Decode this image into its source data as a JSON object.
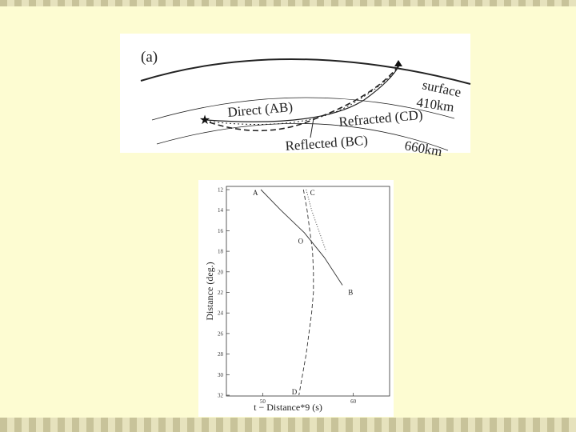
{
  "figure_a": {
    "panel_label": "(a)",
    "surface": "surface",
    "layer_410": "410km",
    "layer_660": "660km",
    "direct": "Direct (AB)",
    "refracted": "Refracted (CD)",
    "reflected": "Reflected (BC)"
  },
  "figure_b": {
    "x_label": "t − Distance*9 (s)",
    "y_label": "Distance (deg.)",
    "xlim": [
      46,
      64
    ],
    "xticks": [
      50,
      60
    ],
    "ylim": [
      12,
      32
    ],
    "yticks": [
      12,
      14,
      16,
      18,
      20,
      22,
      24,
      26,
      28,
      30,
      32
    ],
    "series": [
      {
        "style": "solid",
        "x": [
          49.8,
          52,
          54.6,
          56.8,
          58.8
        ],
        "y": [
          12,
          14,
          16.2,
          18.6,
          21.3
        ]
      },
      {
        "style": "dashed",
        "x": [
          54.5,
          54.9,
          55.2,
          55.5,
          55.6,
          55.6,
          55.4,
          55.1,
          54.8,
          54.4,
          54.0
        ],
        "y": [
          12,
          14,
          16,
          18,
          20,
          22,
          24,
          26,
          28,
          30,
          32
        ]
      },
      {
        "style": "dotted",
        "x": [
          54.8,
          55.4,
          56.2,
          57
        ],
        "y": [
          12,
          14,
          16,
          18
        ]
      }
    ],
    "annotations": [
      {
        "text": "A",
        "x": 49.2,
        "y": 12.3
      },
      {
        "text": "C",
        "x": 55.5,
        "y": 12.3
      },
      {
        "text": "O",
        "x": 54.2,
        "y": 17.0
      },
      {
        "text": "B",
        "x": 59.7,
        "y": 22.0
      },
      {
        "text": "D",
        "x": 53.5,
        "y": 31.7
      }
    ]
  }
}
